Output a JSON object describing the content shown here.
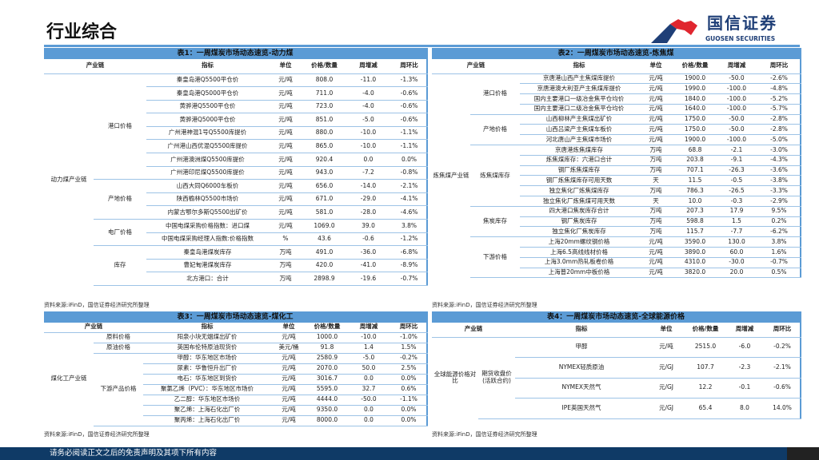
{
  "header": {
    "title": "行业综合",
    "logo_cn": "国信证券",
    "logo_en": "GUOSEN SECURITIES"
  },
  "columns": [
    "产业链",
    "指标",
    "单位",
    "价格/数量",
    "周增减",
    "周环比"
  ],
  "tables": [
    {
      "caption": "表1：一周煤炭市场动态速览-动力煤",
      "source": "资料来源:iFinD，国信证券经济研究所整理",
      "groups": [
        {
          "chain": "动力煤产业链",
          "segments": [
            {
              "name": "港口价格",
              "rows": [
                [
                  "秦皇岛港Q5500平仓价",
                  "元/吨",
                  "808.0",
                  "-11.0",
                  "-1.3%"
                ],
                [
                  "秦皇岛港Q5000平仓价",
                  "元/吨",
                  "711.0",
                  "-4.0",
                  "-0.6%"
                ],
                [
                  "黄骅港Q5500平仓价",
                  "元/吨",
                  "723.0",
                  "-4.0",
                  "-0.6%"
                ],
                [
                  "黄骅港Q5000平仓价",
                  "元/吨",
                  "851.0",
                  "-5.0",
                  "-0.6%"
                ],
                [
                  "广州港神混1号Q5500库提价",
                  "元/吨",
                  "880.0",
                  "-10.0",
                  "-1.1%"
                ],
                [
                  "广州港山西优混Q5500库提价",
                  "元/吨",
                  "865.0",
                  "-10.0",
                  "-1.1%"
                ],
                [
                  "广州港澳洲煤Q5500库提价",
                  "元/吨",
                  "920.4",
                  "0.0",
                  "0.0%"
                ],
                [
                  "广州港印尼煤Q5500库提价",
                  "元/吨",
                  "943.0",
                  "-7.2",
                  "-0.8%"
                ]
              ]
            },
            {
              "name": "产地价格",
              "rows": [
                [
                  "山西大同Q6000车板价",
                  "元/吨",
                  "656.0",
                  "-14.0",
                  "-2.1%"
                ],
                [
                  "陕西榆林Q5500市场价",
                  "元/吨",
                  "671.0",
                  "-29.0",
                  "-4.1%"
                ],
                [
                  "内蒙古鄂尔多斯Q5500出矿价",
                  "元/吨",
                  "581.0",
                  "-28.0",
                  "-4.6%"
                ]
              ]
            },
            {
              "name": "电厂价格",
              "rows": [
                [
                  "中国电煤采购价格指数：进口煤",
                  "元/吨",
                  "1069.0",
                  "39.0",
                  "3.8%"
                ],
                [
                  "中国电煤采购经理人指数:价格指数",
                  "%",
                  "43.6",
                  "-0.6",
                  "-1.2%"
                ]
              ]
            },
            {
              "name": "库存",
              "rows": [
                [
                  "秦皇岛港煤炭库存",
                  "万吨",
                  "491.0",
                  "-36.0",
                  "-6.8%"
                ],
                [
                  "曹妃甸港煤炭库存",
                  "万吨",
                  "420.0",
                  "-41.0",
                  "-8.9%"
                ],
                [
                  "北方港口：合计",
                  "万吨",
                  "2898.9",
                  "-19.6",
                  "-0.7%"
                ]
              ]
            }
          ]
        }
      ]
    },
    {
      "caption": "表2：一周煤炭市场动态速览-炼焦煤",
      "source": "资料来源:iFinD，国信证券经济研究所整理",
      "groups": [
        {
          "chain": "炼焦煤产业链",
          "segments": [
            {
              "name": "港口价格",
              "rows": [
                [
                  "京唐港山西产主焦煤库提价",
                  "元/吨",
                  "1900.0",
                  "-50.0",
                  "-2.6%"
                ],
                [
                  "京唐港澳大利亚产主焦煤库提价",
                  "元/吨",
                  "1990.0",
                  "-100.0",
                  "-4.8%"
                ],
                [
                  "国内主要港口一级冶金焦平仓均价",
                  "元/吨",
                  "1840.0",
                  "-100.0",
                  "-5.2%"
                ],
                [
                  "国内主要港口二级冶金焦平仓均价",
                  "元/吨",
                  "1640.0",
                  "-100.0",
                  "-5.7%"
                ]
              ]
            },
            {
              "name": "产地价格",
              "rows": [
                [
                  "山西柳林产主焦煤出矿价",
                  "元/吨",
                  "1750.0",
                  "-50.0",
                  "-2.8%"
                ],
                [
                  "山西吕梁产主焦煤车板价",
                  "元/吨",
                  "1750.0",
                  "-50.0",
                  "-2.8%"
                ],
                [
                  "河北唐山产主焦煤市场价",
                  "元/吨",
                  "1900.0",
                  "-100.0",
                  "-5.0%"
                ]
              ]
            },
            {
              "name": "炼焦煤库存",
              "rows": [
                [
                  "京唐港炼焦煤库存",
                  "万吨",
                  "68.8",
                  "-2.1",
                  "-3.0%"
                ],
                [
                  "炼焦煤库存：六港口合计",
                  "万吨",
                  "203.8",
                  "-9.1",
                  "-4.3%"
                ],
                [
                  "钢厂炼焦煤库存",
                  "万吨",
                  "707.1",
                  "-26.3",
                  "-3.6%"
                ],
                [
                  "钢厂炼焦煤库存可用天数",
                  "天",
                  "11.5",
                  "-0.5",
                  "-3.8%"
                ],
                [
                  "独立焦化厂炼焦煤库存",
                  "万吨",
                  "786.3",
                  "-26.5",
                  "-3.3%"
                ],
                [
                  "独立焦化厂炼焦煤可用天数",
                  "天",
                  "10.0",
                  "-0.3",
                  "-2.9%"
                ]
              ]
            },
            {
              "name": "焦炭库存",
              "rows": [
                [
                  "四大港口焦炭库存合计",
                  "万吨",
                  "207.3",
                  "17.9",
                  "9.5%"
                ],
                [
                  "钢厂焦炭库存",
                  "万吨",
                  "598.8",
                  "1.5",
                  "0.2%"
                ],
                [
                  "独立焦化厂焦炭库存",
                  "万吨",
                  "115.7",
                  "-7.7",
                  "-6.2%"
                ]
              ]
            },
            {
              "name": "下游价格",
              "rows": [
                [
                  "上海20mm螺纹钢价格",
                  "元/吨",
                  "3590.0",
                  "130.0",
                  "3.8%"
                ],
                [
                  "上海6.5高线线材价格",
                  "元/吨",
                  "3890.0",
                  "60.0",
                  "1.6%"
                ],
                [
                  "上海3.0mm热轧板卷价格",
                  "元/吨",
                  "4310.0",
                  "-30.0",
                  "-0.7%"
                ],
                [
                  "上海普20mm中板价格",
                  "元/吨",
                  "3820.0",
                  "20.0",
                  "0.5%"
                ]
              ]
            }
          ]
        }
      ]
    },
    {
      "caption": "表3：一周煤炭市场动态速览-煤化工",
      "source": "资料来源:iFinD，国信证券经济研究所整理",
      "groups": [
        {
          "chain": "煤化工产业链",
          "segments": [
            {
              "name": "原料价格",
              "rows": [
                [
                  "阳泉小块无烟煤出矿价",
                  "元/吨",
                  "1000.0",
                  "-10.0",
                  "-1.0%"
                ]
              ]
            },
            {
              "name": "原油价格",
              "rows": [
                [
                  "英国布伦特原油现货价",
                  "美元/桶",
                  "91.8",
                  "1.4",
                  "1.5%"
                ]
              ]
            },
            {
              "name": "下游产品价格",
              "rows": [
                [
                  "甲醇：华东地区市场价",
                  "元/吨",
                  "2580.9",
                  "-5.0",
                  "-0.2%"
                ],
                [
                  "尿素：华鲁恒升出厂价",
                  "元/吨",
                  "2070.0",
                  "50.0",
                  "2.5%"
                ],
                [
                  "电石：华东地区到货价",
                  "元/吨",
                  "3016.7",
                  "0.0",
                  "0.0%"
                ],
                [
                  "聚氯乙烯（PVC）：华东地区市场价",
                  "元/吨",
                  "5595.0",
                  "32.7",
                  "0.6%"
                ],
                [
                  "乙二醇：华东地区市场价",
                  "元/吨",
                  "4444.0",
                  "-50.0",
                  "-1.1%"
                ],
                [
                  "聚乙烯：上海石化出厂价",
                  "元/吨",
                  "9350.0",
                  "0.0",
                  "0.0%"
                ],
                [
                  "聚丙烯：上海石化出厂价",
                  "元/吨",
                  "8000.0",
                  "0.0",
                  "0.0%"
                ]
              ]
            }
          ]
        }
      ]
    },
    {
      "caption": "表4：一周煤炭市场动态速览-全球能源价格",
      "source": "资料来源:iFinD，国信证券经济研究所整理",
      "groups": [
        {
          "chain": "全球能源价格对比",
          "segments": [
            {
              "name": "期货收盘价(活跃合约)",
              "rows": [
                [
                  "甲醇",
                  "元/吨",
                  "2515.0",
                  "-6.0",
                  "-0.2%"
                ],
                [
                  "NYMEX轻质原油",
                  "元/GJ",
                  "107.7",
                  "-2.3",
                  "-2.1%"
                ],
                [
                  "NYMEX天然气",
                  "元/GJ",
                  "12.2",
                  "-0.1",
                  "-0.6%"
                ],
                [
                  "IPE英国天然气",
                  "元/GJ",
                  "65.4",
                  "8.0",
                  "14.0%"
                ]
              ]
            }
          ]
        }
      ]
    }
  ],
  "footer": {
    "disclaimer": "请务必阅读正文之后的免责声明及其项下所有内容"
  },
  "colors": {
    "accent": "#5b9bd5",
    "footer": "#0f3a66",
    "brand": "#1f3f77",
    "logo_red": "#e0262f"
  }
}
